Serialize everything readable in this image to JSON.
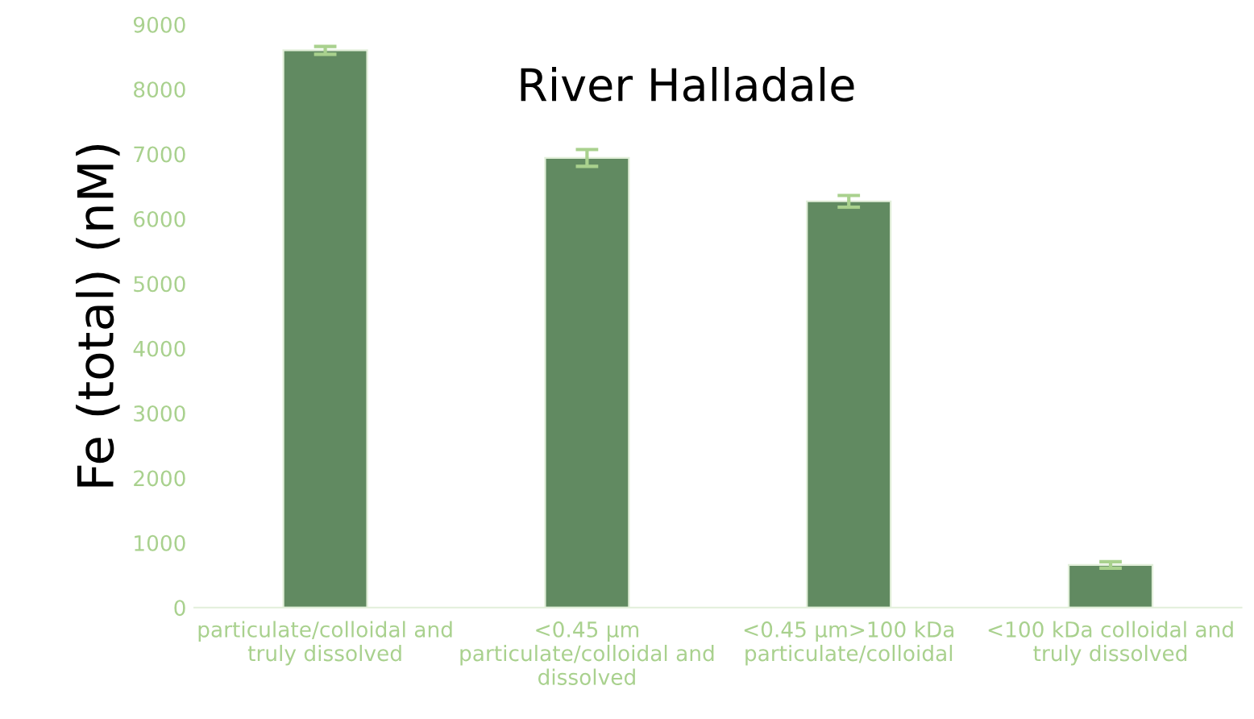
{
  "chart_data": {
    "type": "bar",
    "title": "River Halladale",
    "ylabel": "Fe (total) (nM)",
    "categories": [
      "particulate/colloidal and\ntruly dissolved",
      "<0.45 µm\nparticulate/colloidal and\ndissolved",
      "<0.45 µm>100 kDa\nparticulate/colloidal",
      "<100 kDa colloidal and\ntruly dissolved"
    ],
    "values": [
      8600,
      6940,
      6270,
      657
    ],
    "errors": [
      60,
      130,
      90,
      50
    ],
    "color": "#618a61",
    "ylim": [
      0,
      9000
    ],
    "yticks": [
      0,
      1000,
      2000,
      3000,
      4000,
      5000,
      6000,
      7000,
      8000,
      9000
    ],
    "grid": false,
    "legend": false
  }
}
